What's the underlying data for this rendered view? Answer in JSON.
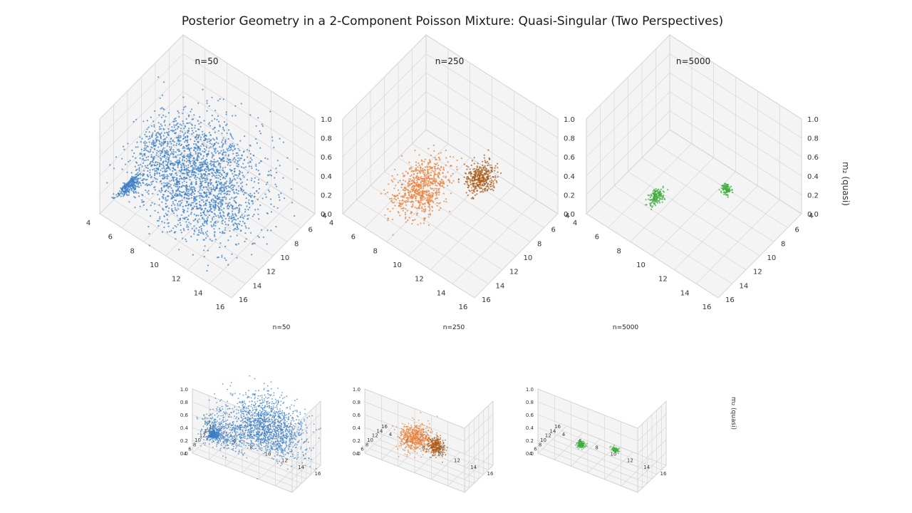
{
  "title": "Posterior Geometry in a 2-Component Poisson Mixture: Quasi-Singular (Two Perspectives)",
  "chart_data": {
    "type": "scatter",
    "zlabel": "m₂ (quasi)",
    "x_ticks": [
      "4",
      "6",
      "8",
      "10",
      "12",
      "14",
      "16"
    ],
    "y_ticks": [
      "4",
      "6",
      "8",
      "10",
      "12",
      "14",
      "16"
    ],
    "z_ticks": [
      "0.0",
      "0.2",
      "0.4",
      "0.6",
      "0.8",
      "1.0"
    ],
    "xlim": [
      4,
      16
    ],
    "ylim": [
      4,
      16
    ],
    "zlim": [
      0,
      1
    ],
    "grid": true,
    "colors": {
      "n50": "#3b7dc4",
      "n250": "#e8803a",
      "n250_dark": "#a85a16",
      "n5000": "#3fae3f"
    },
    "perspectives": [
      {
        "name": "perspective-1",
        "panels": [
          {
            "title": "n=50"
          },
          {
            "title": "n=250"
          },
          {
            "title": "n=5000"
          }
        ]
      },
      {
        "name": "perspective-2",
        "panels": [
          {
            "title": "n=50"
          },
          {
            "title": "n=250"
          },
          {
            "title": "n=5000"
          }
        ]
      }
    ],
    "posterior_clusters": {
      "n50": [
        {
          "x_center": 11,
          "y_center": 11,
          "z_center": 0.55,
          "spread": [
            2.2,
            2.2,
            0.22
          ],
          "count": 1300,
          "color": "n50"
        },
        {
          "x_center": 6,
          "y_center": 9,
          "z_center": 0.25,
          "spread": [
            1.5,
            1.5,
            0.12
          ],
          "count": 500,
          "color": "n50"
        },
        {
          "x_center": 10,
          "y_center": 13,
          "z_center": 0.35,
          "spread": [
            2.5,
            1.5,
            0.15
          ],
          "count": 400,
          "color": "n50"
        },
        {
          "x_center": 4.2,
          "y_center": 12,
          "z_center": 0.02,
          "spread": [
            0.3,
            0.8,
            0.02
          ],
          "count": 250,
          "color": "n50"
        }
      ],
      "n250": [
        {
          "x_center": 8,
          "y_center": 11,
          "z_center": 0.2,
          "spread": [
            0.8,
            1.6,
            0.08
          ],
          "count": 700,
          "color": "n250"
        },
        {
          "x_center": 11.5,
          "y_center": 8,
          "z_center": 0.35,
          "spread": [
            0.5,
            0.7,
            0.06
          ],
          "count": 350,
          "color": "n250_dark"
        }
      ],
      "n5000": [
        {
          "x_center": 7.2,
          "y_center": 11,
          "z_center": 0.05,
          "spread": [
            0.22,
            0.5,
            0.02
          ],
          "count": 160,
          "color": "n5000"
        },
        {
          "x_center": 12,
          "y_center": 8.5,
          "z_center": 0.3,
          "spread": [
            0.2,
            0.25,
            0.02
          ],
          "count": 100,
          "color": "n5000"
        }
      ]
    }
  }
}
